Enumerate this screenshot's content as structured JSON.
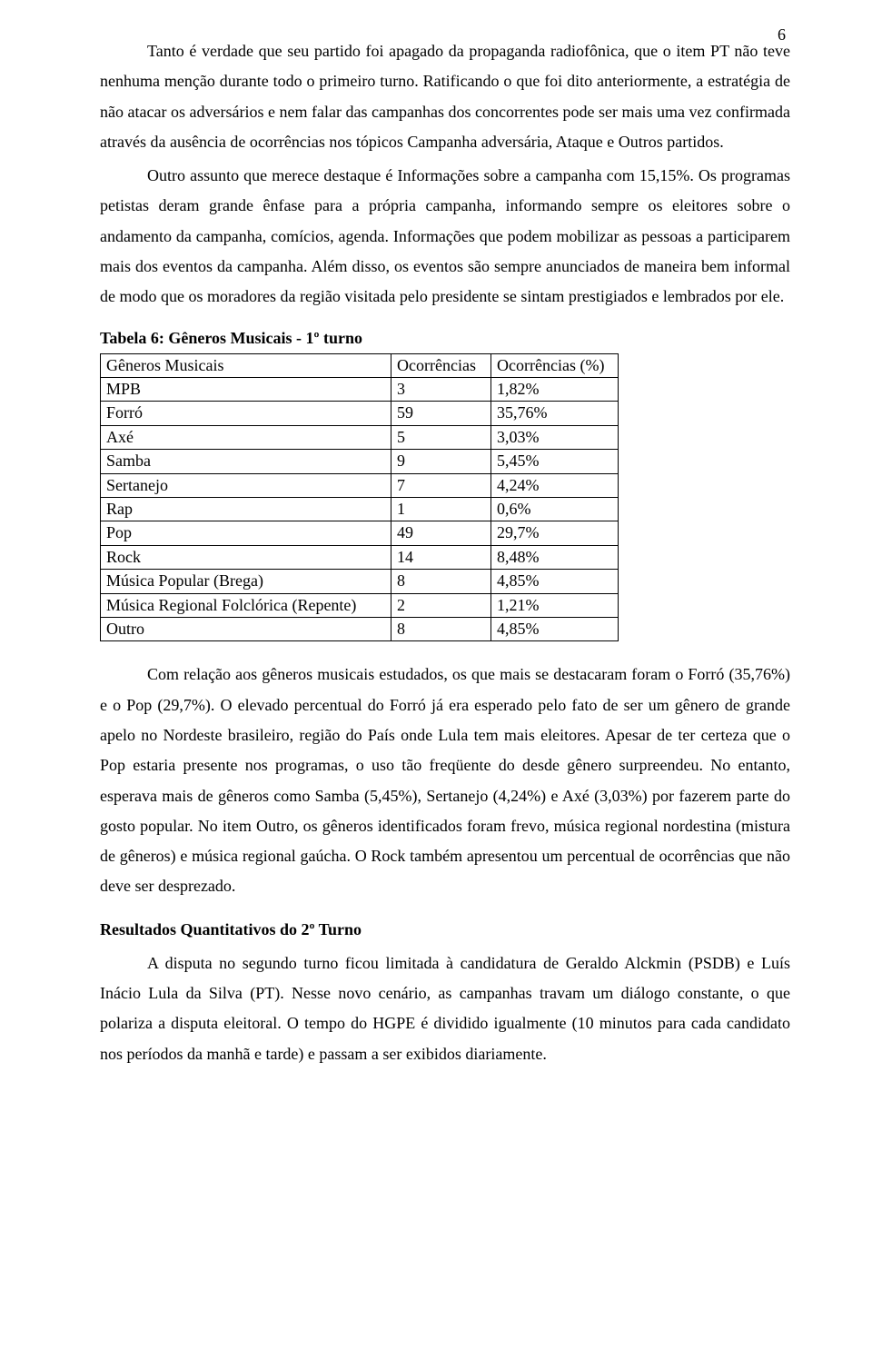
{
  "page_number": "6",
  "paragraphs": {
    "p1": "Tanto é verdade que seu partido foi apagado da propaganda radiofônica, que o item PT não teve nenhuma menção durante todo o primeiro turno. Ratificando o que foi dito anteriormente, a estratégia de não atacar os adversários e nem falar das campanhas dos concorrentes pode ser mais uma vez confirmada através da ausência de ocorrências nos tópicos Campanha adversária, Ataque e Outros partidos.",
    "p2": "Outro assunto que merece destaque é Informações sobre a campanha com 15,15%. Os programas petistas deram grande ênfase para a própria campanha, informando sempre os eleitores sobre o andamento da campanha, comícios, agenda. Informações que podem mobilizar as pessoas a participarem mais dos eventos da campanha. Além disso, os eventos são sempre anunciados de maneira bem informal de modo que os moradores da região visitada pelo presidente se sintam prestigiados e lembrados por ele.",
    "p3": "Com relação aos gêneros musicais estudados, os que mais se destacaram foram o Forró (35,76%) e o Pop (29,7%). O elevado percentual do Forró já era esperado pelo fato de ser um gênero de grande apelo no Nordeste brasileiro, região do País onde Lula tem mais eleitores. Apesar de ter certeza que o Pop estaria presente nos programas, o uso tão freqüente do desde gênero surpreendeu. No entanto, esperava mais de gêneros como Samba (5,45%), Sertanejo (4,24%) e Axé (3,03%) por fazerem parte do gosto popular. No item Outro, os gêneros identificados foram frevo, música regional nordestina (mistura de gêneros) e música regional gaúcha. O Rock também apresentou um percentual de ocorrências que não deve ser desprezado.",
    "p4": "A disputa no segundo turno ficou limitada à candidatura de Geraldo Alckmin (PSDB) e Luís Inácio Lula da Silva (PT). Nesse novo cenário, as campanhas travam um diálogo constante, o que polariza a disputa eleitoral. O tempo do HGPE é dividido igualmente (10 minutos para cada candidato nos períodos da manhã e tarde) e passam a ser exibidos diariamente."
  },
  "table6": {
    "title": "Tabela 6: Gêneros Musicais - 1º turno",
    "headers": {
      "c0": "Gêneros Musicais",
      "c1": "Ocorrências",
      "c2": "Ocorrências (%)"
    },
    "rows": [
      {
        "c0": "MPB",
        "c1": "3",
        "c2": "1,82%"
      },
      {
        "c0": "Forró",
        "c1": "59",
        "c2": "35,76%"
      },
      {
        "c0": "Axé",
        "c1": "5",
        "c2": "3,03%"
      },
      {
        "c0": "Samba",
        "c1": "9",
        "c2": "5,45%"
      },
      {
        "c0": "Sertanejo",
        "c1": "7",
        "c2": "4,24%"
      },
      {
        "c0": "Rap",
        "c1": "1",
        "c2": "0,6%"
      },
      {
        "c0": "Pop",
        "c1": "49",
        "c2": "29,7%"
      },
      {
        "c0": "Rock",
        "c1": "14",
        "c2": "8,48%"
      },
      {
        "c0": "Música Popular (Brega)",
        "c1": "8",
        "c2": "4,85%"
      },
      {
        "c0": "Música Regional Folclórica (Repente)",
        "c1": "2",
        "c2": "1,21%"
      },
      {
        "c0": "Outro",
        "c1": "8",
        "c2": "4,85%"
      }
    ],
    "col_widths": {
      "c0": "320px",
      "c1": "110px",
      "c2": "140px"
    }
  },
  "section_title": "Resultados Quantitativos do 2º Turno"
}
